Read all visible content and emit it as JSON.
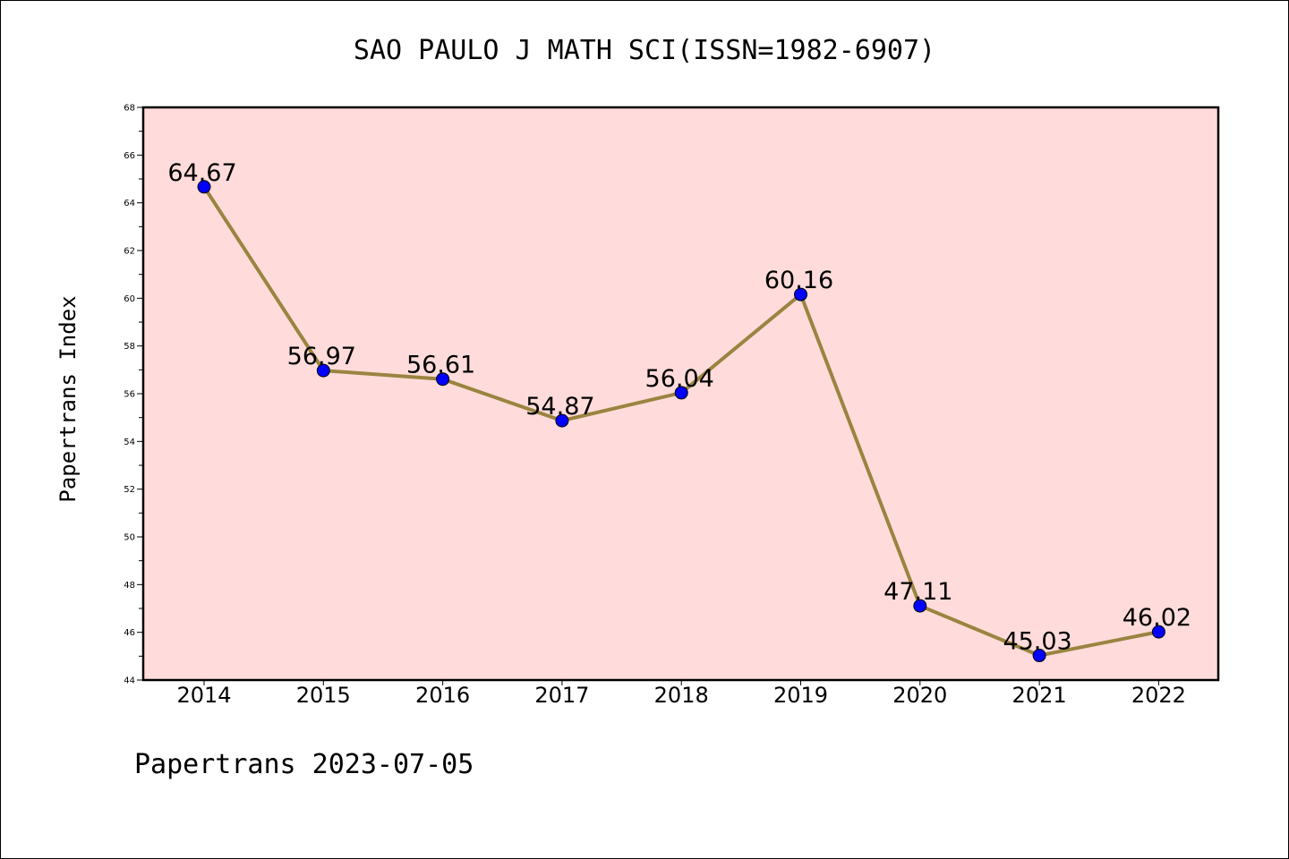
{
  "chart_data": {
    "type": "line",
    "title": "SAO PAULO J MATH SCI(ISSN=1982-6907)",
    "ylabel": "Papertrans Index",
    "xlabel": "",
    "footer": "Papertrans 2023-07-05",
    "categories": [
      "2014",
      "2015",
      "2016",
      "2017",
      "2018",
      "2019",
      "2020",
      "2021",
      "2022"
    ],
    "values": [
      64.67,
      56.97,
      56.61,
      54.87,
      56.04,
      60.16,
      47.11,
      45.03,
      46.02
    ],
    "data_labels": [
      "64.67",
      "56.97",
      "56.61",
      "54.87",
      "56.04",
      "60.16",
      "47.11",
      "45.03",
      "46.02"
    ],
    "ylim": [
      44,
      68
    ],
    "yticks": [
      "44",
      "46",
      "48",
      "50",
      "52",
      "54",
      "56",
      "58",
      "60",
      "62",
      "64",
      "66",
      "68"
    ],
    "grid": false,
    "legend": "none",
    "colors": {
      "plot_background": "#ffdcdb",
      "line": "#9a8440",
      "marker": "#0000ff",
      "marker_edge": "#000000"
    }
  }
}
